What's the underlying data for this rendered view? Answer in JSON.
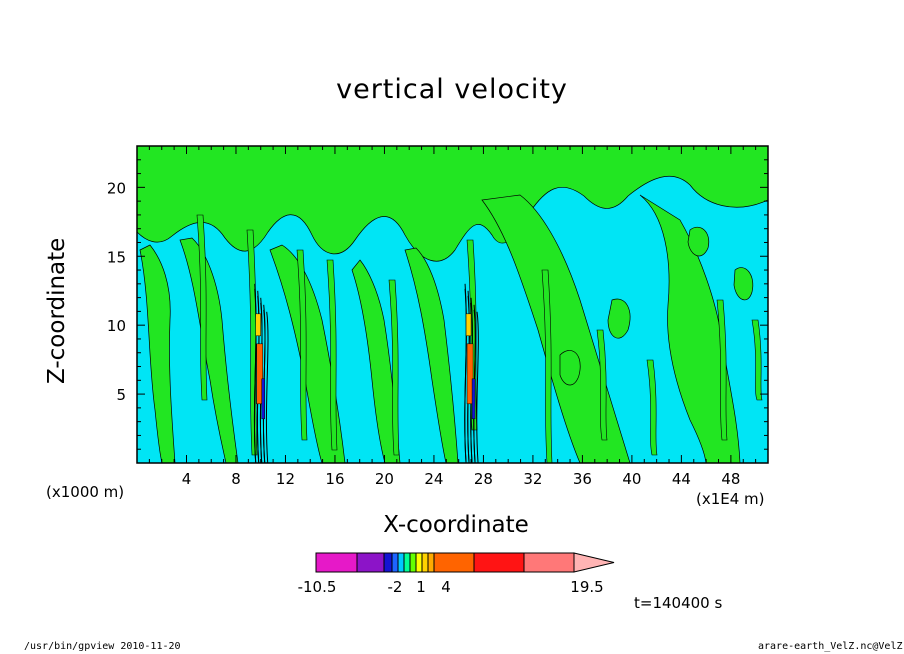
{
  "footer": {
    "left": "/usr/bin/gpview   2010-11-20",
    "right": "arare-earth_VelZ.nc@VelZ"
  },
  "time_label": "t=140400 s",
  "colors": {
    "background": "#00e5f5",
    "positive_weak": "#22e622",
    "contour_line": "#000000"
  },
  "chart_data": {
    "type": "heatmap",
    "title": "vertical velocity",
    "xlabel": "X-coordinate",
    "ylabel": "Z-coordinate",
    "x_unit_left": "(x1000 m)",
    "x_unit_right": "(x1E4 m)",
    "xlim": [
      0,
      51
    ],
    "ylim": [
      0,
      23
    ],
    "x_ticks": [
      4,
      8,
      12,
      16,
      20,
      24,
      28,
      32,
      36,
      40,
      44,
      48
    ],
    "y_ticks": [
      5,
      10,
      15,
      20
    ],
    "convective_cores": [
      {
        "x": 10,
        "z_top": 13
      },
      {
        "x": 27,
        "z_top": 13
      }
    ],
    "colorbar": {
      "levels": [
        -10.5,
        -2,
        1,
        4,
        19.5
      ],
      "labels": [
        "-10.5",
        "-2",
        "1",
        "4",
        "19.5"
      ],
      "colors": [
        "#e619c8",
        "#8c14c8",
        "#1414d2",
        "#1e64ff",
        "#00c8ff",
        "#00ff96",
        "#64ff00",
        "#ffff00",
        "#ffd200",
        "#ffaa00",
        "#ff6400",
        "#ff1414",
        "#ff7878"
      ],
      "extend_color": "#ffb4b4"
    }
  }
}
